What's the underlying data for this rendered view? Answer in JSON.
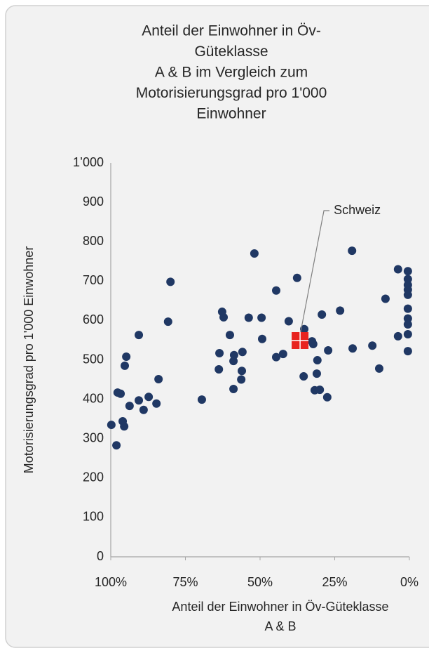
{
  "chart_data": {
    "type": "scatter",
    "title": [
      "Anteil der Einwohner in Öv-",
      "Güteklasse",
      "A & B im Vergleich zum",
      "Motorisierungsgrad pro 1'000",
      "Einwohner"
    ],
    "xlabel": [
      "Anteil der Einwohner in Öv-Güteklasse",
      "A & B"
    ],
    "ylabel": "Motorisierungsgrad pro 1'000 Einwohner",
    "xlim": [
      100,
      0
    ],
    "xticks": [
      {
        "value": 100,
        "label": "100%"
      },
      {
        "value": 75,
        "label": "75%"
      },
      {
        "value": 50,
        "label": "50%"
      },
      {
        "value": 25,
        "label": "25%"
      },
      {
        "value": 0,
        "label": "0%"
      }
    ],
    "ylim": [
      0,
      1000
    ],
    "yticks": [
      0,
      100,
      200,
      300,
      400,
      500,
      600,
      700,
      800,
      900,
      {
        "value": 1000,
        "label": "1’000"
      }
    ],
    "grid": false,
    "color": "#203864",
    "x": [
      99.8,
      98.1,
      97.7,
      96.7,
      96.0,
      95.5,
      95.3,
      94.8,
      93.7,
      90.6,
      90.6,
      89.0,
      87.3,
      84.7,
      84.0,
      80.8,
      80.0,
      69.5,
      63.6,
      63.8,
      62.7,
      62.2,
      60.1,
      58.9,
      58.7,
      58.9,
      56.1,
      55.9,
      56.3,
      53.8,
      51.9,
      49.5,
      49.3,
      44.6,
      44.6,
      42.3,
      40.4,
      37.6,
      35.2,
      35.4,
      32.6,
      32.2,
      31.7,
      31.0,
      30.8,
      30.0,
      29.3,
      27.5,
      27.2,
      23.2,
      19.2,
      19.0,
      12.4,
      10.1,
      8.0,
      3.8,
      3.8,
      0.5,
      0.5,
      0.5,
      0.5,
      0.5,
      0.5,
      0.5,
      0.5,
      0.5,
      0.5
    ],
    "y": [
      335,
      283,
      417,
      414,
      344,
      331,
      485,
      508,
      383,
      397,
      563,
      373,
      406,
      389,
      451,
      597,
      698,
      399,
      517,
      476,
      622,
      608,
      563,
      497,
      512,
      426,
      472,
      520,
      450,
      607,
      770,
      607,
      553,
      507,
      676,
      515,
      598,
      708,
      578,
      458,
      547,
      540,
      423,
      465,
      499,
      424,
      615,
      405,
      524,
      625,
      777,
      529,
      536,
      478,
      655,
      730,
      560,
      725,
      705,
      690,
      678,
      665,
      630,
      605,
      590,
      565,
      522
    ],
    "highlight": {
      "label": "Schweiz",
      "x": 36.6,
      "y": 549,
      "color": "#e8231f"
    }
  }
}
